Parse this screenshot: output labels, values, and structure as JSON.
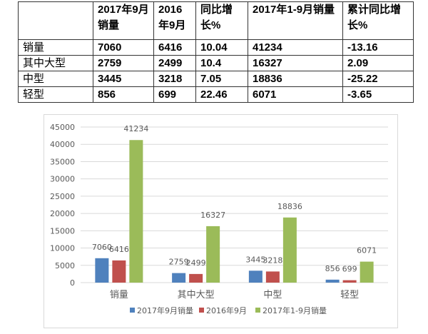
{
  "table": {
    "headers": [
      "",
      "2017年9月销量",
      "2016年9月",
      "同比增长%",
      "2017年1-9月销量",
      "累计同比增长%"
    ],
    "rows": [
      [
        "销量",
        "7060",
        "6416",
        "10.04",
        "41234",
        "-13.16"
      ],
      [
        "其中大型",
        "2759",
        "2499",
        "10.4",
        "16327",
        "2.09"
      ],
      [
        "中型",
        "3445",
        "3218",
        "7.05",
        "18836",
        "-25.22"
      ],
      [
        "轻型",
        "856",
        "699",
        "22.46",
        "6071",
        "-3.65"
      ]
    ]
  },
  "chart_data": {
    "type": "bar",
    "title": "",
    "categories": [
      "销量",
      "其中大型",
      "中型",
      "轻型"
    ],
    "series": [
      {
        "name": "2017年9月销量",
        "values": [
          7060,
          2759,
          3445,
          856
        ],
        "color": "#4f81bd"
      },
      {
        "name": "2016年9月",
        "values": [
          6416,
          2499,
          3218,
          699
        ],
        "color": "#c0504d"
      },
      {
        "name": "2017年1-9月销量",
        "values": [
          41234,
          16327,
          18836,
          6071
        ],
        "color": "#9bbb59"
      }
    ],
    "ylim": [
      0,
      45000
    ],
    "yticks": [
      "0",
      "5000",
      "10000",
      "15000",
      "20000",
      "25000",
      "30000",
      "35000",
      "40000",
      "45000"
    ],
    "grid": true,
    "legend": "bottom",
    "data_labels": true
  }
}
